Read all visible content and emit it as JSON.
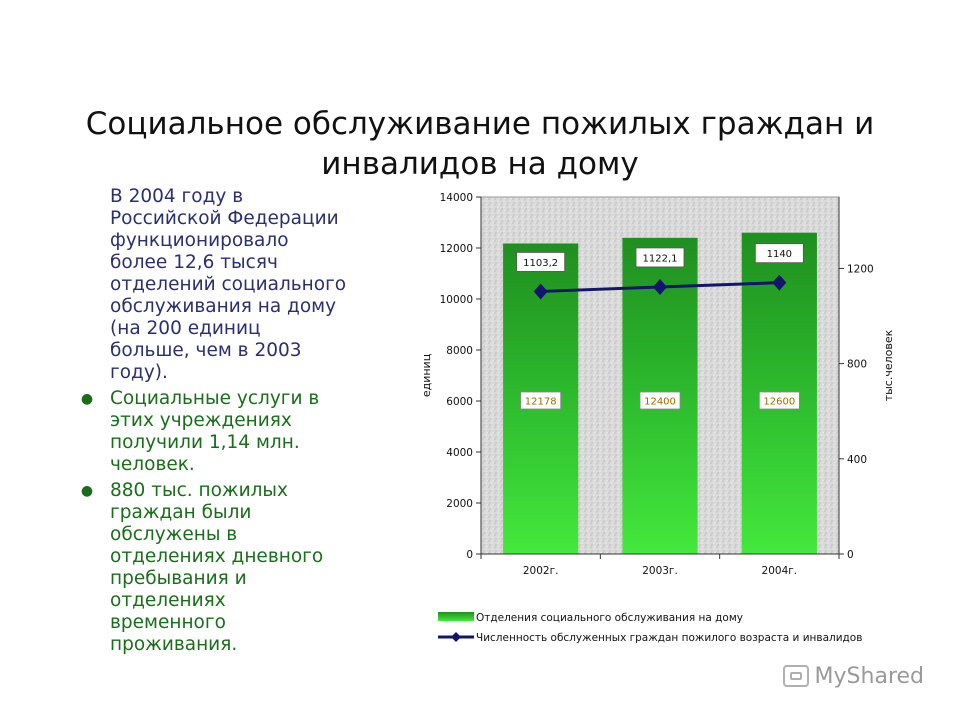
{
  "slide": {
    "title_line1": "Социальное обслуживание пожилых граждан и",
    "title_line2": "инвалидов на дому"
  },
  "text": {
    "intro_lines": [
      "В 2004 году в",
      "Российской Федерации",
      "функционировало",
      "более 12,6 тысяч",
      "отделений социального",
      "обслуживания на дому",
      "(на 200 единиц",
      "больше, чем в 2003",
      "году)."
    ],
    "bullets": [
      {
        "lines": [
          "Социальные услуги в",
          "этих учреждениях",
          "получили 1,14 млн.",
          "человек."
        ]
      },
      {
        "lines": [
          "880 тыс. пожилых",
          "граждан были",
          "обслужены в",
          "отделениях дневного",
          "пребывания и",
          "отделениях",
          "временного",
          "проживания."
        ]
      }
    ]
  },
  "watermark": {
    "text": "MyShared"
  },
  "chart_data": {
    "type": "bar",
    "categories": [
      "2002г.",
      "2003г.",
      "2004г."
    ],
    "series": [
      {
        "name": "Отделения социального обслуживания на дому",
        "kind": "bar",
        "axis": "left",
        "values": [
          12178,
          12400,
          12600
        ],
        "labels": [
          "12178",
          "12400",
          "12600"
        ],
        "color": "#22a31f"
      },
      {
        "name": "Численность обслуженных граждан пожилого возраста и инвалидов",
        "kind": "line",
        "axis": "right",
        "values": [
          1103.2,
          1122.1,
          1140
        ],
        "labels": [
          "1103,2",
          "1122,1",
          "1140"
        ],
        "color": "#14146e"
      }
    ],
    "ylabel": "единиц",
    "y2label": "тыс.человек",
    "ylim": [
      0,
      14000
    ],
    "y2lim": [
      0,
      1500
    ],
    "yticks": [
      0,
      2000,
      4000,
      6000,
      8000,
      10000,
      12000,
      14000
    ],
    "y2ticks": [
      0,
      400,
      800,
      1200
    ],
    "legend_position": "bottom",
    "grid": false,
    "plot_background": "textured light gray"
  }
}
